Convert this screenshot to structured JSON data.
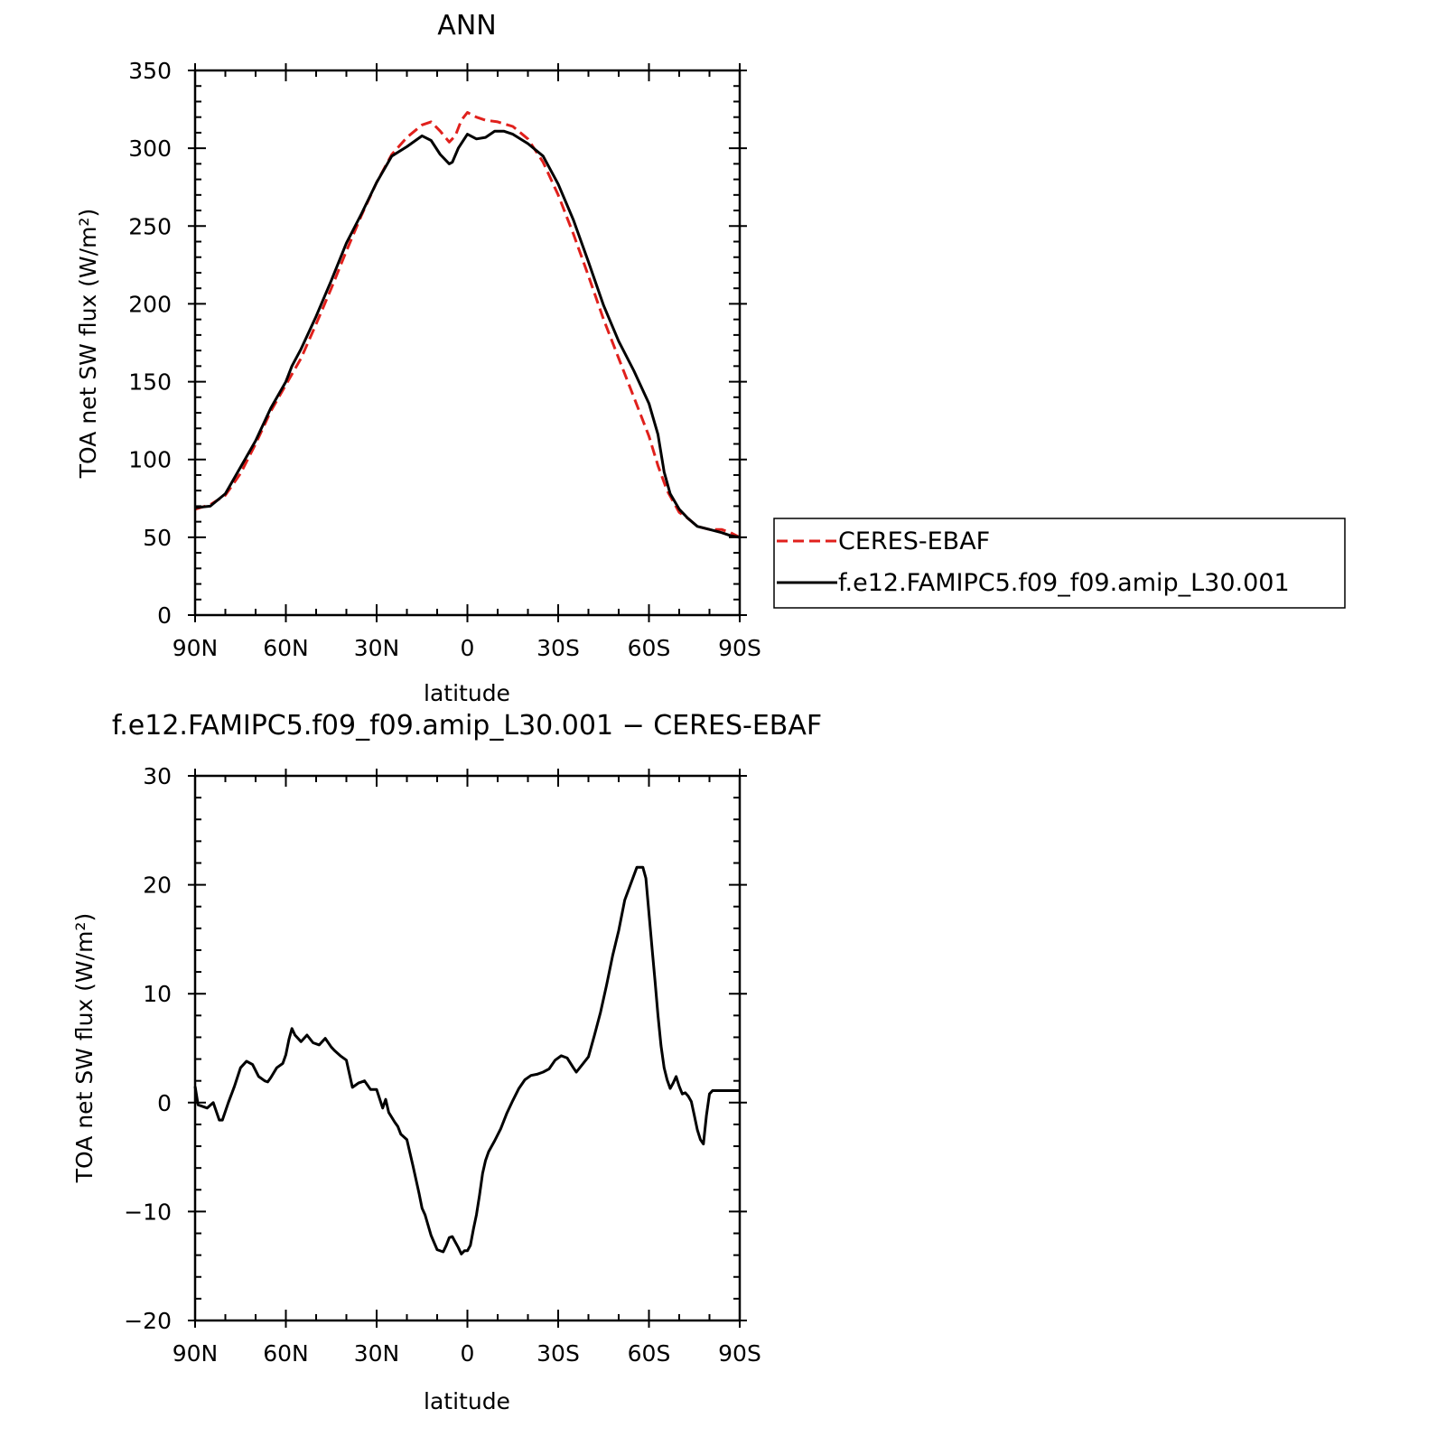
{
  "chart_data": [
    {
      "type": "line",
      "title": "ANN",
      "xlabel": "latitude",
      "ylabel": "TOA net SW flux (W/m²)",
      "xlim": [
        90,
        -90
      ],
      "ylim": [
        0,
        350
      ],
      "xticks": [
        90,
        60,
        30,
        0,
        -30,
        -60,
        -90
      ],
      "xtick_labels": [
        "90N",
        "60N",
        "30N",
        "0",
        "30S",
        "60S",
        "90S"
      ],
      "yticks": [
        0,
        50,
        100,
        150,
        200,
        250,
        300,
        350
      ],
      "ytick_labels": [
        "0",
        "50",
        "100",
        "150",
        "200",
        "250",
        "300",
        "350"
      ],
      "legend_position": "right",
      "series": [
        {
          "name": "CERES-EBAF",
          "color": "#e0201c",
          "dash": "dashed",
          "x": [
            90,
            85,
            80,
            75,
            70,
            65,
            60,
            55,
            50,
            45,
            40,
            35,
            30,
            25,
            20,
            15,
            12,
            9,
            6,
            4,
            2,
            0,
            -3,
            -6,
            -10,
            -15,
            -20,
            -25,
            -30,
            -35,
            -40,
            -45,
            -50,
            -55,
            -60,
            -63,
            -66,
            -70,
            -73,
            -76,
            -80,
            -84,
            -87,
            -90
          ],
          "values": [
            68,
            71,
            77,
            91,
            110,
            131,
            148,
            165,
            187,
            210,
            234,
            257,
            278,
            296,
            307,
            315,
            317,
            311,
            304,
            308,
            318,
            323,
            320,
            318,
            317,
            314,
            306,
            291,
            270,
            245,
            218,
            190,
            165,
            140,
            115,
            96,
            80,
            66,
            62,
            57,
            55,
            55,
            53,
            50
          ]
        },
        {
          "name": "f.e12.FAMIPC5.f09_f09.amip_L30.001",
          "color": "#000000",
          "dash": "solid",
          "x": [
            90,
            85,
            80,
            75,
            70,
            65,
            60,
            58,
            55,
            50,
            45,
            40,
            35,
            30,
            25,
            20,
            15,
            12,
            9,
            6,
            5,
            3,
            0,
            -3,
            -6,
            -9,
            -12,
            -15,
            -20,
            -25,
            -30,
            -35,
            -40,
            -45,
            -50,
            -55,
            -60,
            -63,
            -65,
            -67,
            -70,
            -73,
            -76,
            -80,
            -84,
            -87,
            -90
          ],
          "values": [
            69,
            70,
            78,
            95,
            112,
            133,
            150,
            160,
            171,
            192,
            215,
            239,
            258,
            278,
            295,
            301,
            308,
            305,
            296,
            290,
            291,
            300,
            309,
            306,
            307,
            311,
            311,
            309,
            303,
            295,
            277,
            254,
            227,
            199,
            176,
            157,
            136,
            116,
            92,
            78,
            68,
            62,
            57,
            55,
            53,
            51,
            50
          ]
        }
      ]
    },
    {
      "type": "line",
      "title": "f.e12.FAMIPC5.f09_f09.amip_L30.001 − CERES-EBAF",
      "xlabel": "latitude",
      "ylabel": "TOA net SW flux (W/m²)",
      "xlim": [
        90,
        -90
      ],
      "ylim": [
        -20,
        30
      ],
      "xticks": [
        90,
        60,
        30,
        0,
        -30,
        -60,
        -90
      ],
      "xtick_labels": [
        "90N",
        "60N",
        "30N",
        "0",
        "30S",
        "60S",
        "90S"
      ],
      "yticks": [
        -20,
        -10,
        0,
        10,
        20,
        30
      ],
      "ytick_labels": [
        "−20",
        "−10",
        "0",
        "10",
        "20",
        "30"
      ],
      "series": [
        {
          "color": "#000000",
          "dash": "solid",
          "x": [
            90,
            89,
            88,
            86,
            84,
            82,
            81,
            79,
            77,
            75,
            73,
            71,
            69,
            67,
            66,
            65,
            63,
            61,
            60,
            59,
            58,
            57,
            55,
            53,
            51,
            49,
            47,
            45,
            44,
            42,
            40,
            38,
            36,
            35,
            34,
            32,
            30,
            28,
            27,
            26,
            24,
            23,
            22,
            20,
            18,
            16,
            15,
            14,
            12,
            10,
            8,
            7,
            6,
            5,
            4,
            3,
            2,
            1,
            0,
            -1,
            -2,
            -3,
            -4,
            -5,
            -6,
            -7,
            -9,
            -11,
            -13,
            -15,
            -17,
            -19,
            -21,
            -23,
            -25,
            -27,
            -29,
            -31,
            -33,
            -35,
            -36,
            -38,
            -40,
            -42,
            -44,
            -46,
            -48,
            -50,
            -52,
            -54,
            -56,
            -58,
            -59,
            -60,
            -61,
            -62,
            -63,
            -64,
            -65,
            -66,
            -67,
            -68,
            -69,
            -70,
            -71,
            -72,
            -73,
            -74,
            -75,
            -76,
            -77,
            -78,
            -79,
            -80,
            -81,
            -82,
            -83,
            -84,
            -85,
            -86,
            -87,
            -88,
            -89,
            -90
          ],
          "values": [
            1.5,
            -0.2,
            -0.3,
            -0.5,
            0,
            -1.6,
            -1.6,
            0,
            1.5,
            3.2,
            3.8,
            3.5,
            2.4,
            2.0,
            1.9,
            2.3,
            3.2,
            3.6,
            4.4,
            5.8,
            6.8,
            6.2,
            5.6,
            6.2,
            5.5,
            5.3,
            5.9,
            5.1,
            4.8,
            4.3,
            3.9,
            1.4,
            1.8,
            1.9,
            2.0,
            1.2,
            1.2,
            -0.5,
            0.3,
            -0.9,
            -1.8,
            -2.2,
            -2.9,
            -3.4,
            -5.8,
            -8.3,
            -9.7,
            -10.3,
            -12.2,
            -13.5,
            -13.7,
            -13.1,
            -12.4,
            -12.3,
            -12.8,
            -13.3,
            -13.9,
            -13.6,
            -13.6,
            -13.1,
            -11.6,
            -10.3,
            -8.5,
            -6.5,
            -5.3,
            -4.5,
            -3.5,
            -2.4,
            -1.0,
            0.2,
            1.3,
            2.1,
            2.5,
            2.6,
            2.8,
            3.1,
            3.9,
            4.3,
            4.1,
            3.2,
            2.8,
            3.5,
            4.2,
            6.2,
            8.3,
            10.8,
            13.5,
            15.8,
            18.6,
            20.1,
            21.6,
            21.6,
            20.6,
            17.4,
            14.2,
            11.2,
            8.0,
            5.2,
            3.2,
            2.1,
            1.3,
            1.8,
            2.4,
            1.5,
            0.8,
            0.9,
            0.6,
            0.1,
            -1.2,
            -2.5,
            -3.4,
            -3.8,
            -1.2,
            0.8,
            1.1,
            1.1,
            1.1,
            1.1,
            1.1,
            1.1,
            1.1,
            1.1,
            1.1,
            1.1
          ]
        }
      ]
    }
  ],
  "legend": [
    {
      "label": "CERES-EBAF"
    },
    {
      "label": "f.e12.FAMIPC5.f09_f09.amip_L30.001"
    }
  ]
}
